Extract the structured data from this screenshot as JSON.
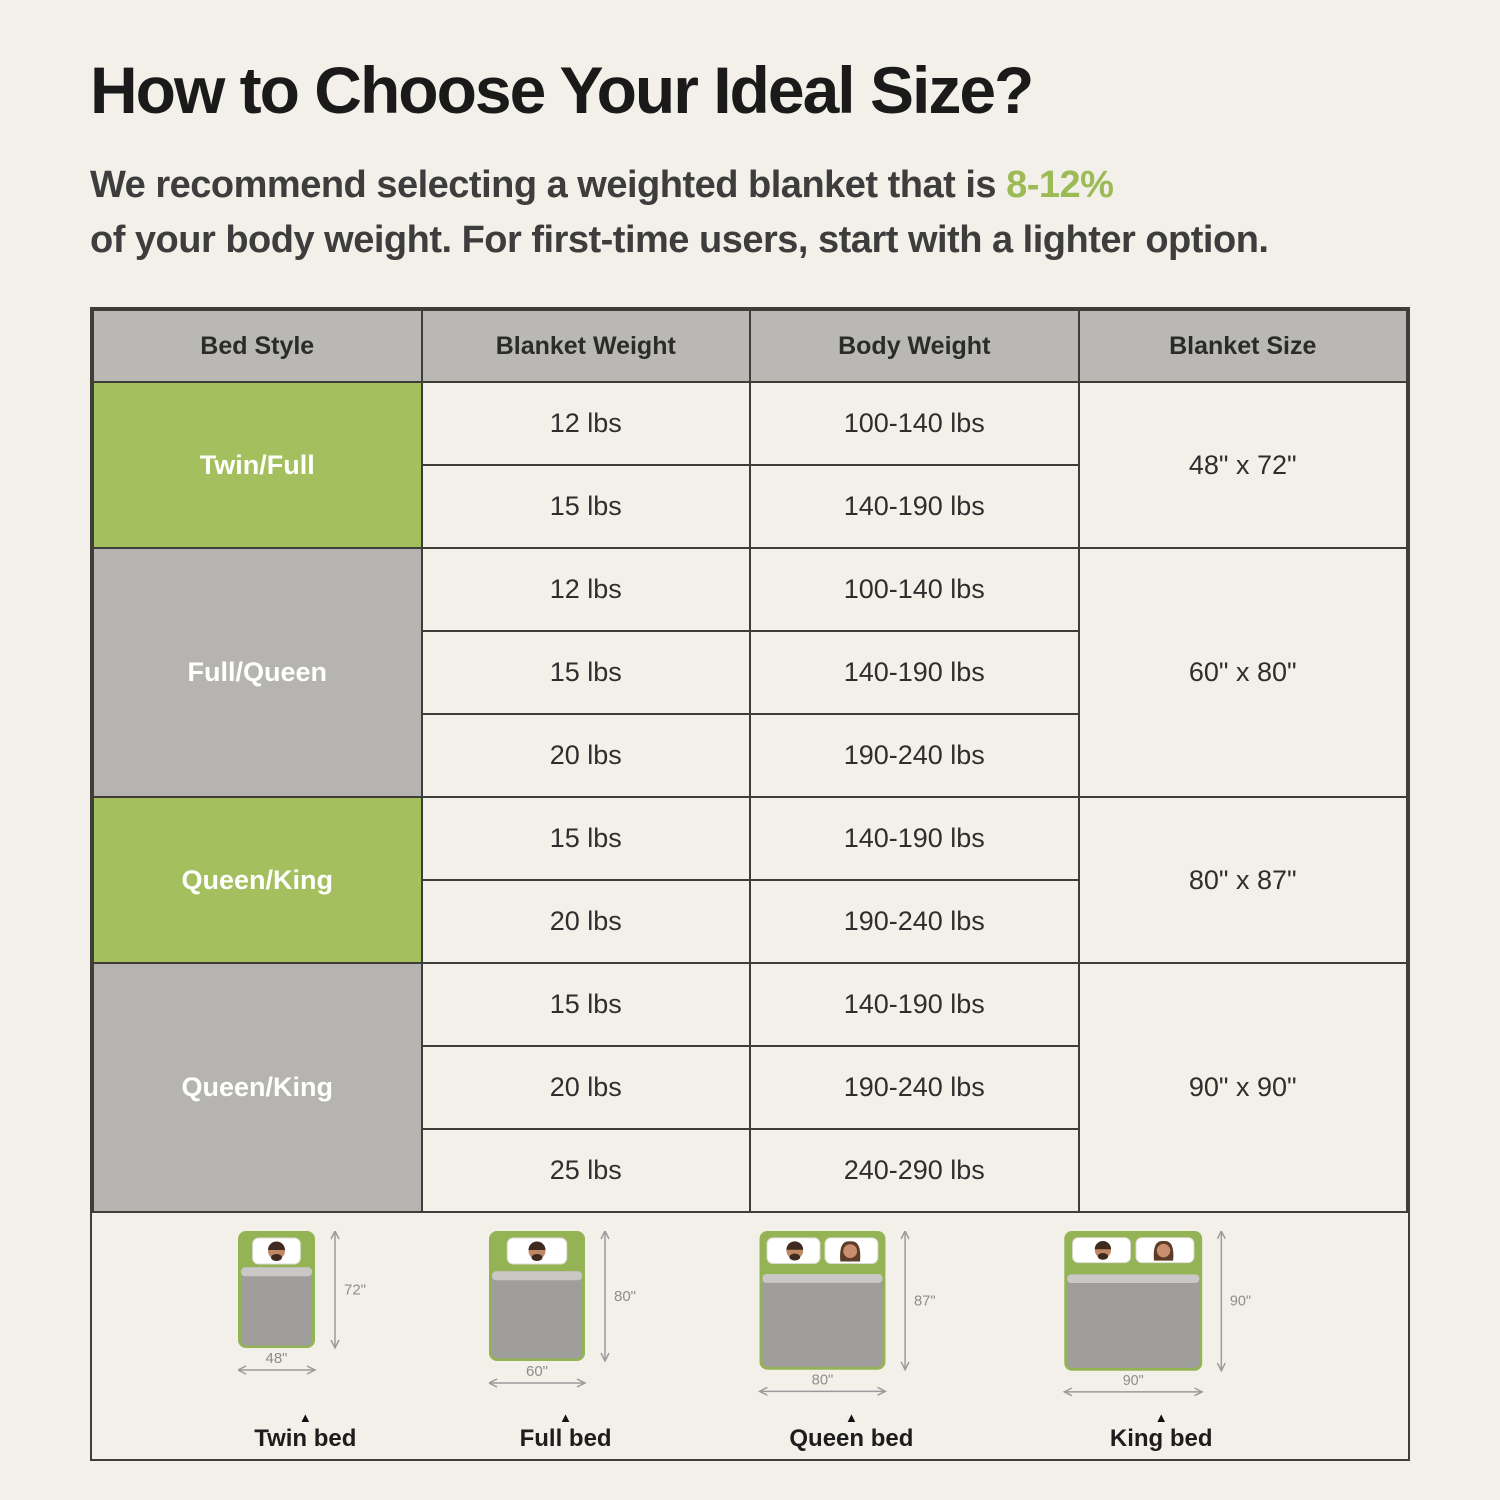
{
  "page": {
    "title": "How to Choose Your Ideal Size?",
    "subtitle_line1_prefix": "We recommend selecting a weighted blanket that is",
    "subtitle_highlight": "8-12%",
    "subtitle_line2": "of your body weight. For first-time users, start with a lighter option."
  },
  "colors": {
    "background": "#f2f0e9",
    "green_cell": "#a4c05e",
    "gray_cell": "#b5b4b0",
    "header_bg": "#b9b8b4",
    "border_dark": "#3f3d38",
    "highlight_green": "#9cba55"
  },
  "chart_data": {
    "type": "table",
    "title": "How to Choose Your Ideal Size?",
    "columns": [
      "Bed Style",
      "Blanket Weight",
      "Body Weight",
      "Blanket Size"
    ],
    "groups": [
      {
        "bed_style": "Twin/Full",
        "color": "green",
        "blanket_size": "48\" x 72\"",
        "rows": [
          {
            "blanket_weight": "12 lbs",
            "body_weight": "100-140 lbs"
          },
          {
            "blanket_weight": "15 lbs",
            "body_weight": "140-190 lbs"
          }
        ]
      },
      {
        "bed_style": "Full/Queen",
        "color": "gray",
        "blanket_size": "60\" x 80\"",
        "rows": [
          {
            "blanket_weight": "12 lbs",
            "body_weight": "100-140 lbs"
          },
          {
            "blanket_weight": "15 lbs",
            "body_weight": "140-190 lbs"
          },
          {
            "blanket_weight": "20 lbs",
            "body_weight": "190-240 lbs"
          }
        ]
      },
      {
        "bed_style": "Queen/King",
        "color": "green",
        "blanket_size": "80\" x 87\"",
        "rows": [
          {
            "blanket_weight": "15 lbs",
            "body_weight": "140-190 lbs"
          },
          {
            "blanket_weight": "20 lbs",
            "body_weight": "190-240 lbs"
          }
        ]
      },
      {
        "bed_style": "Queen/King",
        "color": "gray",
        "blanket_size": "90\" x 90\"",
        "rows": [
          {
            "blanket_weight": "15 lbs",
            "body_weight": "140-190 lbs"
          },
          {
            "blanket_weight": "20 lbs",
            "body_weight": "190-240 lbs"
          },
          {
            "blanket_weight": "25 lbs",
            "body_weight": "240-290 lbs"
          }
        ]
      }
    ]
  },
  "beds": [
    {
      "name": "Twin bed",
      "width_label": "48\"",
      "height_label": "72\"",
      "people": 1
    },
    {
      "name": "Full bed",
      "width_label": "60\"",
      "height_label": "80\"",
      "people": 1
    },
    {
      "name": "Queen bed",
      "width_label": "80\"",
      "height_label": "87\"",
      "people": 2
    },
    {
      "name": "King bed",
      "width_label": "90\"",
      "height_label": "90\"",
      "people": 2
    }
  ]
}
